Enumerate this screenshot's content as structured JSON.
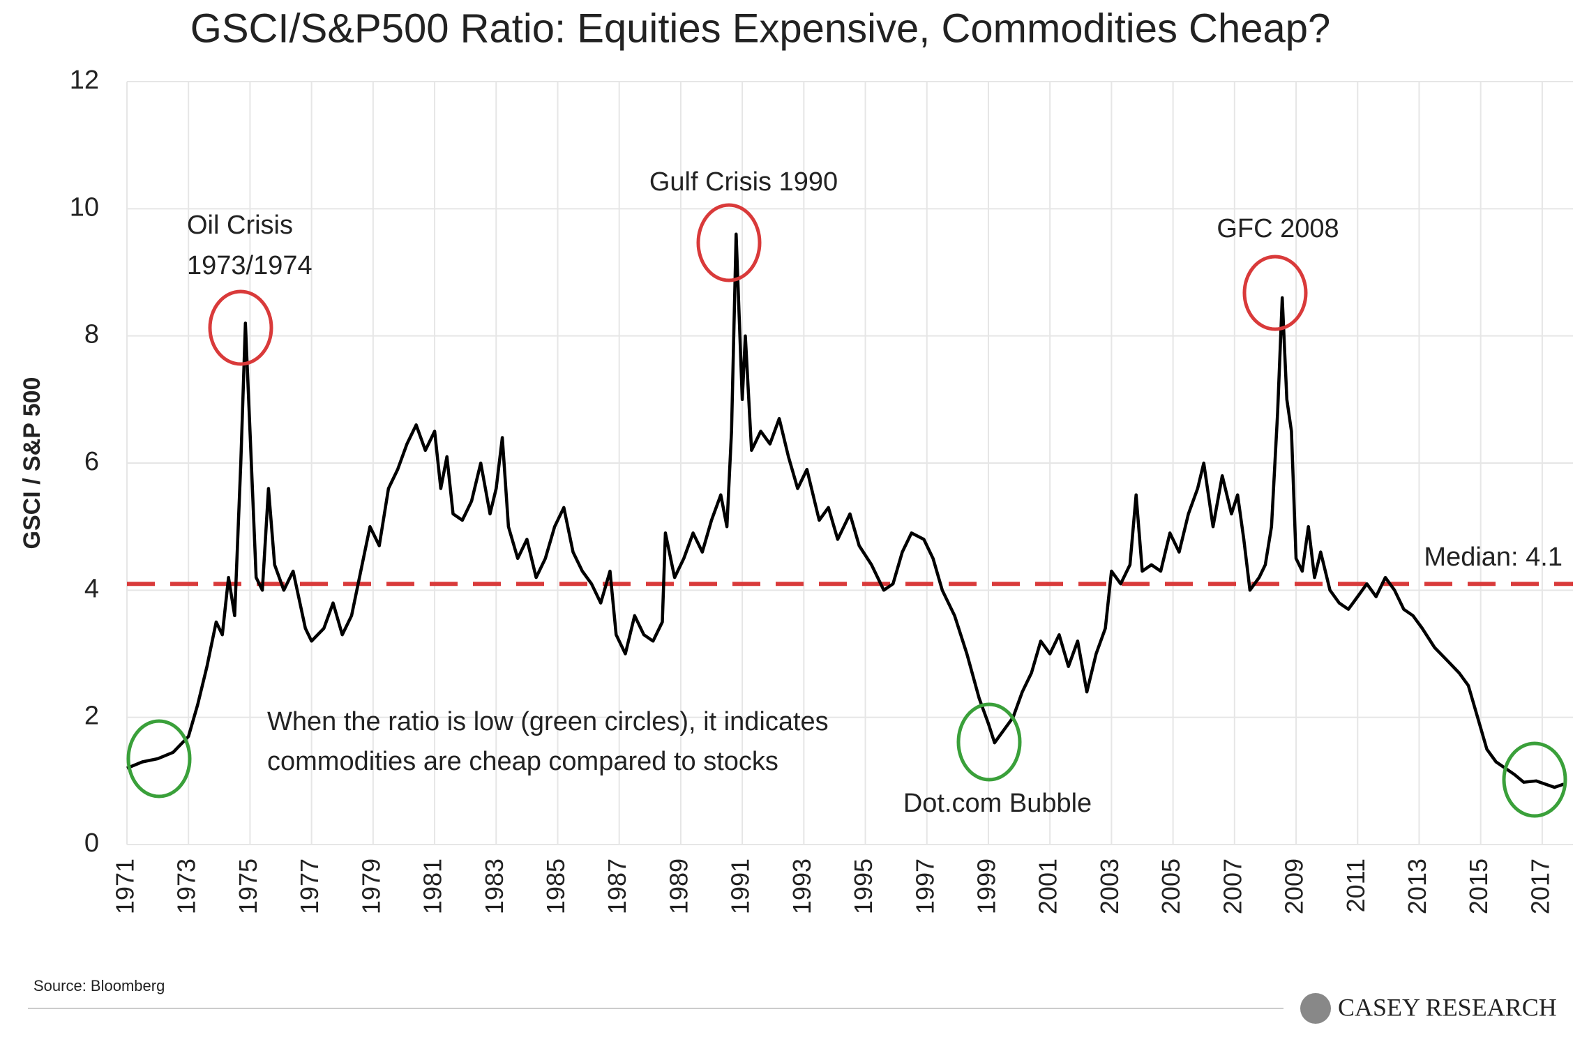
{
  "chart_data": {
    "type": "line",
    "title": "GSCI/S&P500 Ratio: Equities Expensive, Commodities Cheap?",
    "y_label": "GSCI / S&P 500",
    "source": "Source: Bloomberg",
    "logo": "CASEY RESEARCH",
    "annotations": [
      "Oil Crisis",
      "1973/1974",
      "Gulf Crisis 1990",
      "GFC 2008",
      "When the ratio is low (green circles), it indicates",
      "commodities are cheap compared to stocks",
      "Dot.com Bubble"
    ],
    "median": {
      "value": 4.1,
      "label": "Median: 4.1",
      "color": "#d93a3a"
    },
    "xlim": [
      1971,
      2018
    ],
    "xticks": [
      1971,
      1973,
      1975,
      1977,
      1979,
      1981,
      1983,
      1985,
      1987,
      1989,
      1991,
      1993,
      1995,
      1997,
      1999,
      2001,
      2003,
      2005,
      2007,
      2009,
      2011,
      2013,
      2015,
      2017
    ],
    "ylim": [
      0,
      12
    ],
    "yticks": [
      0,
      2,
      4,
      6,
      8,
      10,
      12
    ],
    "grid": true,
    "x": [
      1971.0,
      1971.5,
      1972.0,
      1972.5,
      1973.0,
      1973.3,
      1973.6,
      1973.9,
      1974.1,
      1974.3,
      1974.5,
      1974.7,
      1974.85,
      1975.0,
      1975.2,
      1975.4,
      1975.6,
      1975.8,
      1976.1,
      1976.4,
      1976.8,
      1977.0,
      1977.4,
      1977.7,
      1978.0,
      1978.3,
      1978.6,
      1978.9,
      1979.2,
      1979.5,
      1979.8,
      1980.1,
      1980.4,
      1980.7,
      1981.0,
      1981.2,
      1981.4,
      1981.6,
      1981.9,
      1982.2,
      1982.5,
      1982.8,
      1983.0,
      1983.2,
      1983.4,
      1983.7,
      1984.0,
      1984.3,
      1984.6,
      1984.9,
      1985.2,
      1985.5,
      1985.8,
      1986.1,
      1986.4,
      1986.7,
      1986.9,
      1987.2,
      1987.5,
      1987.8,
      1988.1,
      1988.4,
      1988.5,
      1988.8,
      1989.1,
      1989.4,
      1989.7,
      1990.0,
      1990.3,
      1990.5,
      1990.65,
      1990.8,
      1991.0,
      1991.1,
      1991.3,
      1991.6,
      1991.9,
      1992.2,
      1992.5,
      1992.8,
      1993.1,
      1993.5,
      1993.8,
      1994.1,
      1994.5,
      1994.8,
      1995.2,
      1995.6,
      1995.9,
      1996.2,
      1996.5,
      1996.9,
      1997.2,
      1997.5,
      1997.9,
      1998.3,
      1998.7,
      1999.0,
      1999.2,
      1999.5,
      1999.8,
      2000.1,
      2000.4,
      2000.7,
      2001.0,
      2001.3,
      2001.6,
      2001.9,
      2002.2,
      2002.5,
      2002.8,
      2003.0,
      2003.3,
      2003.6,
      2003.8,
      2004.0,
      2004.3,
      2004.6,
      2004.9,
      2005.2,
      2005.5,
      2005.8,
      2006.0,
      2006.3,
      2006.6,
      2006.9,
      2007.1,
      2007.3,
      2007.5,
      2007.8,
      2008.0,
      2008.2,
      2008.4,
      2008.55,
      2008.7,
      2008.85,
      2009.0,
      2009.2,
      2009.4,
      2009.6,
      2009.8,
      2010.1,
      2010.4,
      2010.7,
      2011.0,
      2011.3,
      2011.6,
      2011.9,
      2012.2,
      2012.5,
      2012.8,
      2013.1,
      2013.5,
      2013.9,
      2014.3,
      2014.6,
      2014.9,
      2015.2,
      2015.5,
      2015.8,
      2016.1,
      2016.4,
      2016.8,
      2017.1,
      2017.4,
      2017.7
    ],
    "series": [
      {
        "name": "GSCI / S&P 500",
        "color": "#000000",
        "values": [
          1.2,
          1.3,
          1.35,
          1.45,
          1.7,
          2.2,
          2.8,
          3.5,
          3.3,
          4.2,
          3.6,
          6.0,
          8.2,
          6.5,
          4.2,
          4.0,
          5.6,
          4.4,
          4.0,
          4.3,
          3.4,
          3.2,
          3.4,
          3.8,
          3.3,
          3.6,
          4.3,
          5.0,
          4.7,
          5.6,
          5.9,
          6.3,
          6.6,
          6.2,
          6.5,
          5.6,
          6.1,
          5.2,
          5.1,
          5.4,
          6.0,
          5.2,
          5.6,
          6.4,
          5.0,
          4.5,
          4.8,
          4.2,
          4.5,
          5.0,
          5.3,
          4.6,
          4.3,
          4.1,
          3.8,
          4.3,
          3.3,
          3.0,
          3.6,
          3.3,
          3.2,
          3.5,
          4.9,
          4.2,
          4.5,
          4.9,
          4.6,
          5.1,
          5.5,
          5.0,
          6.5,
          9.6,
          7.0,
          8.0,
          6.2,
          6.5,
          6.3,
          6.7,
          6.1,
          5.6,
          5.9,
          5.1,
          5.3,
          4.8,
          5.2,
          4.7,
          4.4,
          4.0,
          4.1,
          4.6,
          4.9,
          4.8,
          4.5,
          4.0,
          3.6,
          3.0,
          2.3,
          1.9,
          1.6,
          1.8,
          2.0,
          2.4,
          2.7,
          3.2,
          3.0,
          3.3,
          2.8,
          3.2,
          2.4,
          3.0,
          3.4,
          4.3,
          4.1,
          4.4,
          5.5,
          4.3,
          4.4,
          4.3,
          4.9,
          4.6,
          5.2,
          5.6,
          6.0,
          5.0,
          5.8,
          5.2,
          5.5,
          4.8,
          4.0,
          4.2,
          4.4,
          5.0,
          6.8,
          8.6,
          7.0,
          6.5,
          4.5,
          4.3,
          5.0,
          4.2,
          4.6,
          4.0,
          3.8,
          3.7,
          3.9,
          4.1,
          3.9,
          4.2,
          4.0,
          3.7,
          3.6,
          3.4,
          3.1,
          2.9,
          2.7,
          2.5,
          2.0,
          1.5,
          1.3,
          1.2,
          1.1,
          0.98,
          1.0,
          0.95,
          0.9,
          0.95
        ]
      }
    ]
  }
}
